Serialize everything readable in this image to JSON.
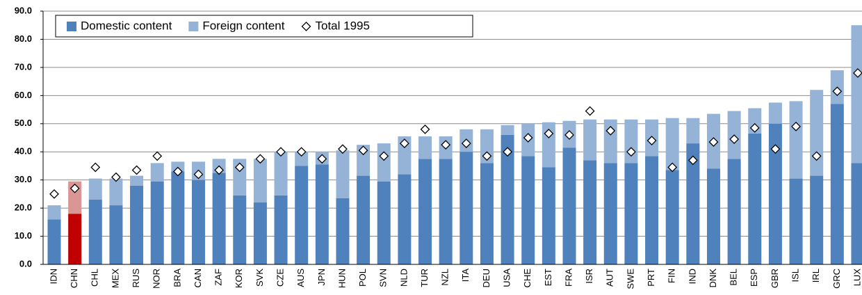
{
  "chart_data": {
    "type": "stacked-bar-scatter",
    "categories": [
      "IDN",
      "CHN",
      "CHL",
      "MEX",
      "RUS",
      "NOR",
      "BRA",
      "CAN",
      "ZAF",
      "KOR",
      "SVK",
      "CZE",
      "AUS",
      "JPN",
      "HUN",
      "POL",
      "SVN",
      "NLD",
      "TUR",
      "NZL",
      "ITA",
      "DEU",
      "USA",
      "CHE",
      "EST",
      "FRA",
      "ISR",
      "AUT",
      "SWE",
      "PRT",
      "FIN",
      "IND",
      "DNK",
      "BEL",
      "ESP",
      "GBR",
      "ISL",
      "IRL",
      "GRC",
      "LUX"
    ],
    "highlight_index": 1,
    "series": [
      {
        "name": "Domestic content",
        "kind": "bar",
        "color": "#4f81bd",
        "highlight_color": "#c00000",
        "values": [
          16,
          18,
          23,
          21,
          28,
          29.5,
          33,
          30,
          32.5,
          24.5,
          22,
          24.5,
          35,
          35.5,
          23.5,
          31.5,
          29.5,
          32,
          37.5,
          37.5,
          40,
          36,
          46,
          38.5,
          34.5,
          41.5,
          37,
          36,
          36,
          38.5,
          33.5,
          43,
          34,
          37.5,
          46.5,
          50,
          30.5,
          31.5,
          57,
          36
        ]
      },
      {
        "name": "Foreign content",
        "kind": "bar",
        "color": "#95b3d7",
        "highlight_color": "#d99694",
        "values": [
          5,
          11.5,
          7.5,
          9.5,
          3.5,
          6.5,
          3.5,
          6.5,
          5,
          13,
          15.5,
          15.5,
          5,
          4.5,
          17,
          11,
          13.5,
          13.5,
          8,
          8,
          8,
          12,
          3.5,
          11.5,
          16,
          9.5,
          14.5,
          15.5,
          15.5,
          13,
          18.5,
          9,
          19.5,
          17,
          9,
          7.5,
          27.5,
          30.5,
          12,
          49
        ]
      },
      {
        "name": "Total 1995",
        "kind": "marker",
        "color": "#000000",
        "values": [
          25,
          27,
          34.5,
          31,
          33.5,
          38.5,
          33,
          32,
          33.5,
          34.5,
          37.5,
          40,
          40,
          37.5,
          41,
          40.5,
          38.5,
          43,
          48,
          42.5,
          43,
          38.5,
          40,
          45,
          46.5,
          46,
          54.5,
          47.5,
          40,
          44,
          34.5,
          37,
          43.5,
          44.5,
          48.5,
          41,
          49,
          38.5,
          61.5,
          68
        ]
      }
    ],
    "ylim": [
      0,
      90
    ],
    "yticks": [
      {
        "value": 0,
        "label": "0.0"
      },
      {
        "value": 10,
        "label": "10.0"
      },
      {
        "value": 20,
        "label": "20.0"
      },
      {
        "value": 30,
        "label": "30.0"
      },
      {
        "value": 40,
        "label": "40.0"
      },
      {
        "value": 50,
        "label": "50.0"
      },
      {
        "value": 60,
        "label": "60.0"
      },
      {
        "value": 70,
        "label": "70.0"
      },
      {
        "value": 80,
        "label": "80.0"
      },
      {
        "value": 90,
        "label": "90.0"
      }
    ],
    "grid": true,
    "legend": "top-left"
  }
}
